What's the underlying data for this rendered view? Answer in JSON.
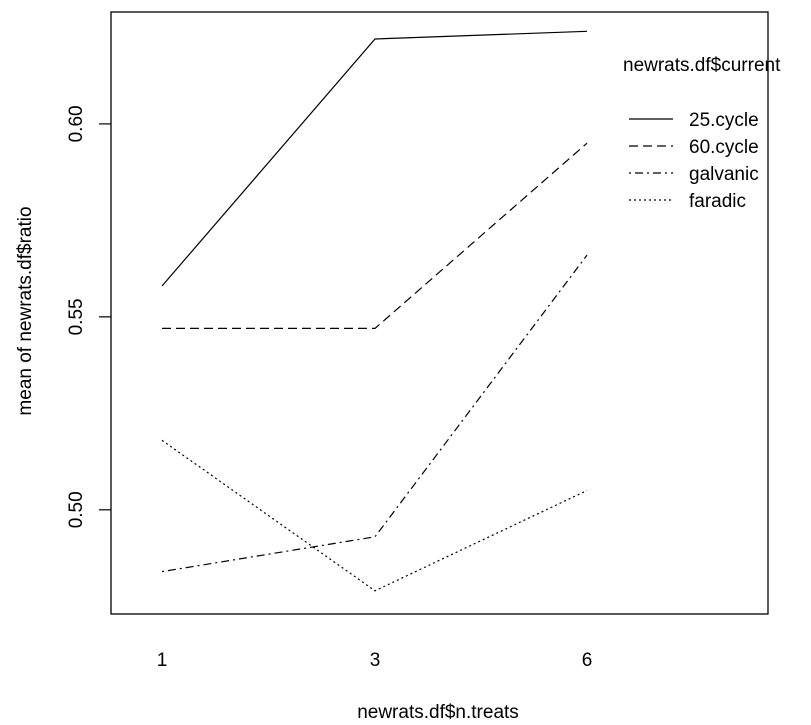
{
  "chart_data": {
    "type": "line",
    "xlabel": "newrats.df$n.treats",
    "ylabel": "mean of  newrats.df$ratio",
    "x_categories": [
      "1",
      "3",
      "6"
    ],
    "y_ticks": [
      0.5,
      0.55,
      0.6
    ],
    "y_tick_labels": [
      "0.50",
      "0.55",
      "0.60"
    ],
    "ylim": [
      0.473,
      0.629
    ],
    "legend": {
      "title": "newrats.df$current",
      "placement": "top-right"
    },
    "series": [
      {
        "name": "25.cycle",
        "values": [
          0.558,
          0.622,
          0.624
        ],
        "dash": "solid"
      },
      {
        "name": "60.cycle",
        "values": [
          0.547,
          0.547,
          0.595
        ],
        "dash": "dashed"
      },
      {
        "name": "galvanic",
        "values": [
          0.484,
          0.493,
          0.566
        ],
        "dash": "dotdash"
      },
      {
        "name": "faradic",
        "values": [
          0.518,
          0.479,
          0.505
        ],
        "dash": "dotted"
      }
    ]
  }
}
